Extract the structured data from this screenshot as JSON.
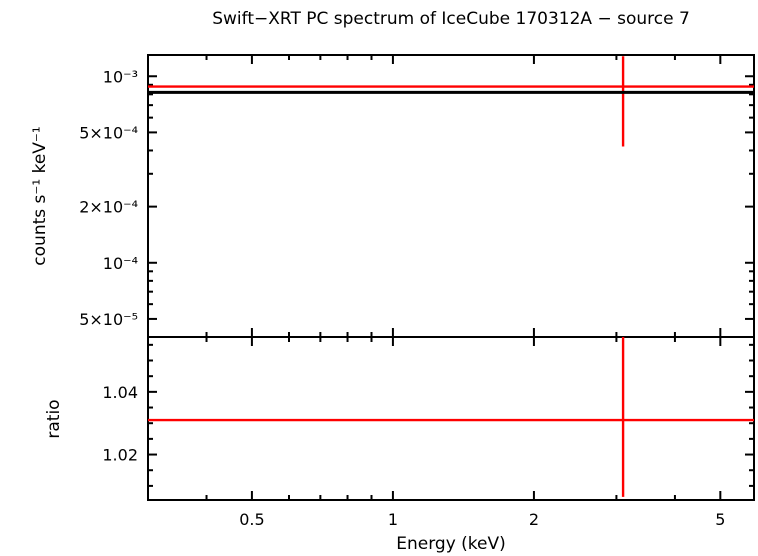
{
  "title": "Swift−XRT PC spectrum of IceCube 170312A − source 7",
  "xlabel": "Energy (keV)",
  "colors": {
    "data": "#ff0000",
    "model": "#000000",
    "axes": "#000000",
    "background": "#ffffff"
  },
  "chart_data": {
    "type": "scatter",
    "title": "Swift−XRT PC spectrum of IceCube 170312A − source 7",
    "xlabel": "Energy (keV)",
    "xscale": "log",
    "xlim": [
      0.3,
      5.9
    ],
    "x_major_ticks": [
      {
        "value": 0.5,
        "label": "0.5"
      },
      {
        "value": 1,
        "label": "1"
      },
      {
        "value": 2,
        "label": "2"
      },
      {
        "value": 5,
        "label": "5"
      }
    ],
    "x_minor_ticks": [
      0.4,
      0.6,
      0.7,
      0.8,
      0.9,
      3,
      4
    ],
    "legend": "none",
    "grid": false,
    "panels": [
      {
        "name": "spectrum",
        "ylabel": "counts s⁻¹ keV⁻¹",
        "yscale": "log",
        "ylim": [
          4e-05,
          0.0013
        ],
        "y_major_ticks": [
          {
            "value": 0.001,
            "label": "10⁻³"
          },
          {
            "value": 0.0005,
            "label": "5×10⁻⁴"
          },
          {
            "value": 0.0002,
            "label": "2×10⁻⁴"
          },
          {
            "value": 0.0001,
            "label": "10⁻⁴"
          },
          {
            "value": 5e-05,
            "label": "5×10⁻⁵"
          }
        ],
        "y_minor_ticks": [
          0.0009,
          0.0008,
          0.0007,
          0.0006,
          0.0004,
          0.0003,
          9e-05,
          8e-05,
          7e-05,
          6e-05
        ],
        "series": [
          {
            "name": "source-spectrum",
            "style": "errorbar",
            "color": "#ff0000",
            "points": [
              {
                "x": 3.1,
                "x_lo": 0.3,
                "x_hi": 5.9,
                "y": 0.00088,
                "y_lo": 0.00042,
                "y_hi": 0.00128
              }
            ]
          },
          {
            "name": "model",
            "style": "hline",
            "color": "#000000",
            "y": 0.00082
          }
        ]
      },
      {
        "name": "ratio",
        "ylabel": "ratio",
        "yscale": "linear",
        "ylim": [
          1.0055,
          1.0575
        ],
        "y_major_ticks": [
          {
            "value": 1.02,
            "label": "1.02"
          },
          {
            "value": 1.04,
            "label": "1.04"
          }
        ],
        "y_minor_ticks": [
          1.01,
          1.015,
          1.025,
          1.03,
          1.035,
          1.045,
          1.05,
          1.055
        ],
        "series": [
          {
            "name": "ratio-point",
            "style": "errorbar",
            "color": "#ff0000",
            "points": [
              {
                "x": 3.1,
                "x_lo": 0.3,
                "x_hi": 5.9,
                "y": 1.031,
                "y_lo": 1.0065,
                "y_hi": 1.0575
              }
            ]
          }
        ]
      }
    ]
  }
}
